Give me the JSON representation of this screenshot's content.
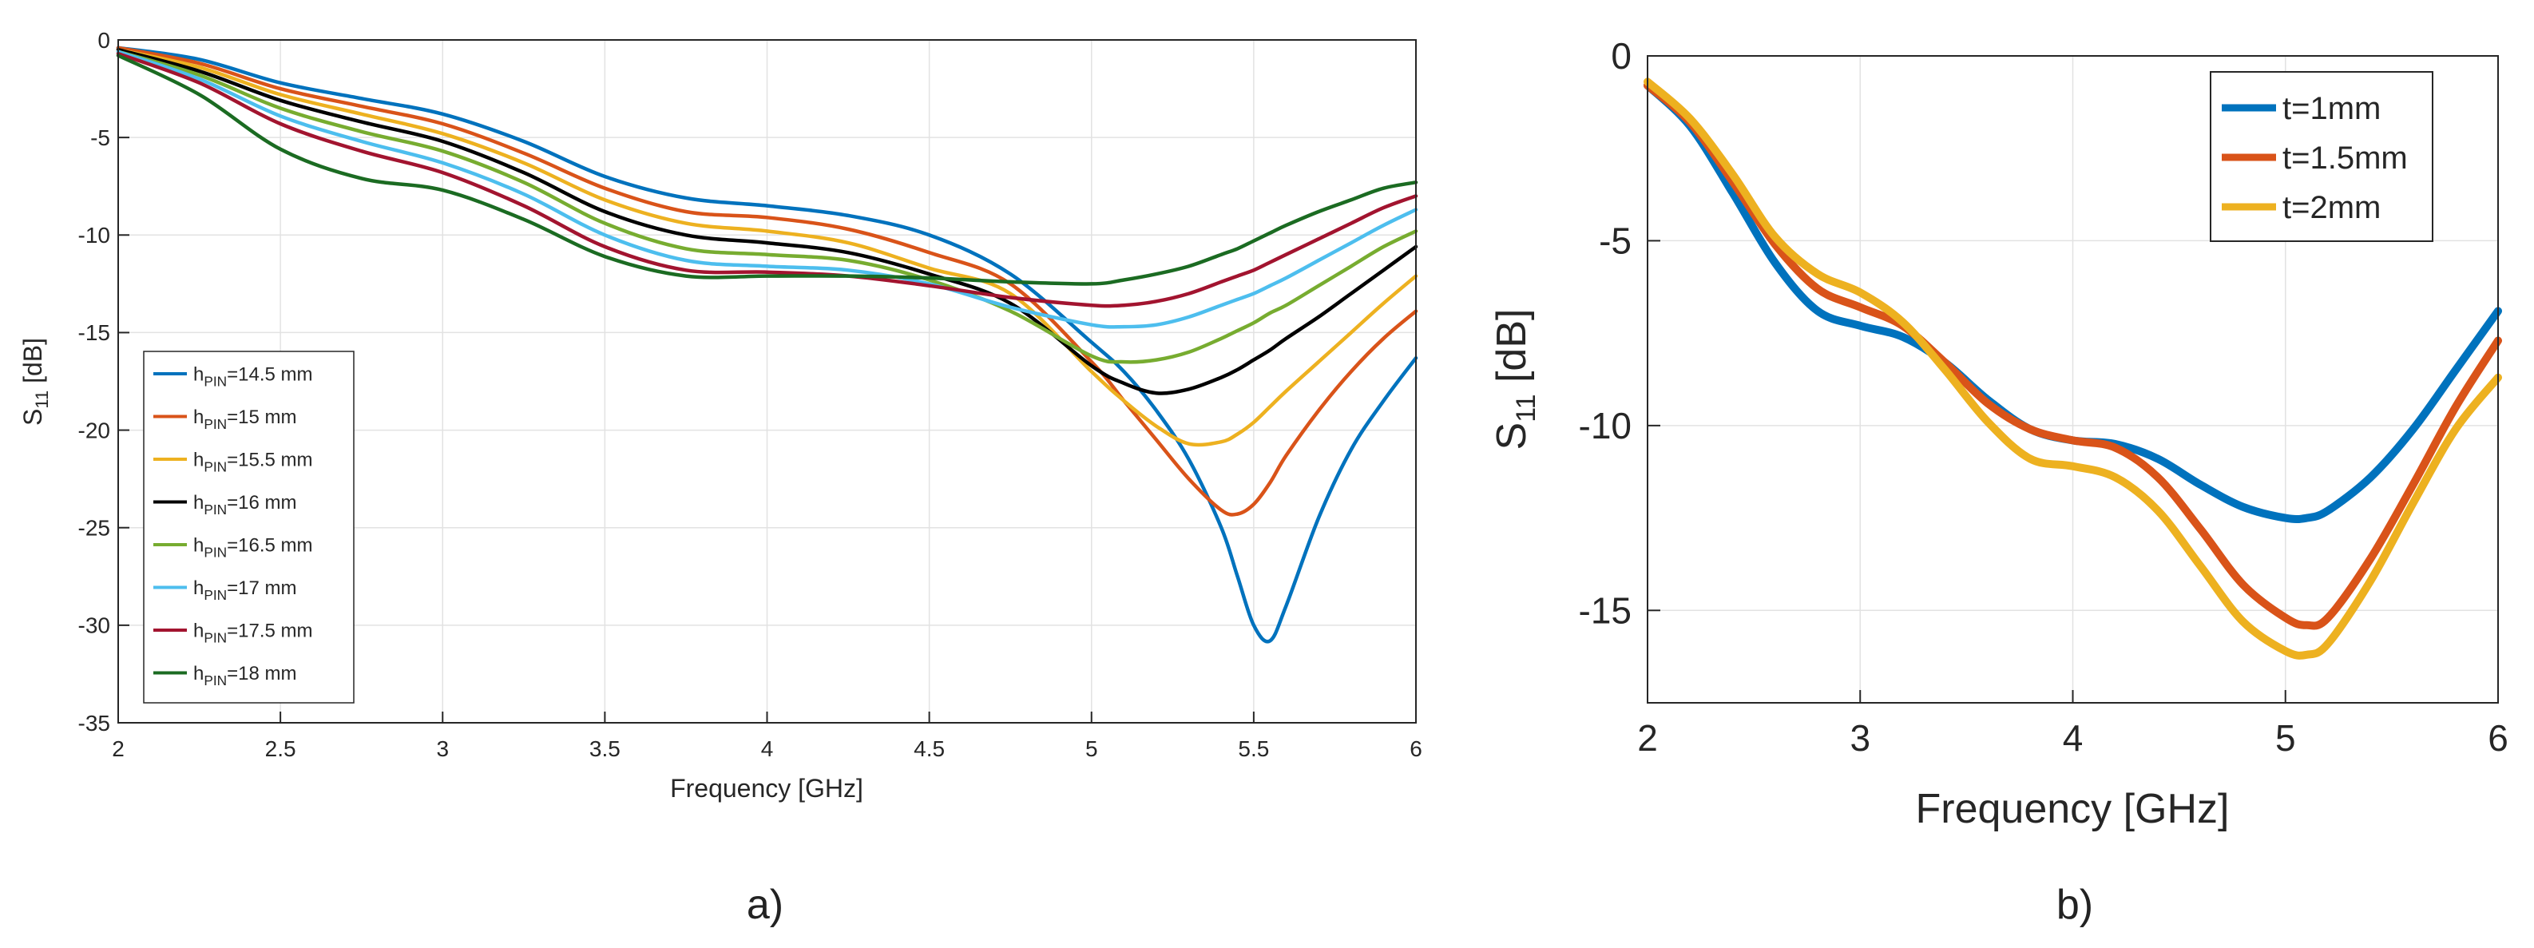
{
  "chart_data": [
    {
      "type": "line",
      "panel_label": "a)",
      "xlabel": "Frequency [GHz]",
      "ylabel_main": "S",
      "ylabel_sub": "11",
      "ylabel_unit": " [dB]",
      "xlim": [
        2,
        6
      ],
      "ylim": [
        -35,
        0
      ],
      "xticks": [
        2,
        2.5,
        3,
        3.5,
        4,
        4.5,
        5,
        5.5,
        6
      ],
      "yticks": [
        0,
        -5,
        -10,
        -15,
        -20,
        -25,
        -30,
        -35
      ],
      "grid": true,
      "legend_position": "bottom-left",
      "x": [
        2,
        2.25,
        2.5,
        2.75,
        3,
        3.25,
        3.5,
        3.75,
        4,
        4.25,
        4.5,
        4.75,
        5,
        5.1,
        5.2,
        5.3,
        5.4,
        5.45,
        5.5,
        5.55,
        5.6,
        5.7,
        5.8,
        5.9,
        6
      ],
      "series": [
        {
          "label_main": "h",
          "label_sub": "PIN",
          "label_rest": "=14.5 mm",
          "color": "#0072BD",
          "values": [
            -0.4,
            -1.0,
            -2.2,
            -3.0,
            -3.8,
            -5.2,
            -7.0,
            -8.1,
            -8.5,
            -9.0,
            -10.0,
            -12.0,
            -15.5,
            -17.0,
            -19.0,
            -21.5,
            -25.0,
            -27.5,
            -30.0,
            -30.8,
            -29.0,
            -24.5,
            -21.0,
            -18.5,
            -16.3
          ]
        },
        {
          "label_main": "h",
          "label_sub": "PIN",
          "label_rest": "=15 mm",
          "color": "#D95319",
          "values": [
            -0.4,
            -1.2,
            -2.5,
            -3.4,
            -4.3,
            -5.8,
            -7.6,
            -8.8,
            -9.1,
            -9.7,
            -10.9,
            -12.5,
            -16.5,
            -18.5,
            -20.5,
            -22.5,
            -24.1,
            -24.3,
            -23.8,
            -22.7,
            -21.3,
            -19.0,
            -17.0,
            -15.3,
            -13.9
          ]
        },
        {
          "label_main": "h",
          "label_sub": "PIN",
          "label_rest": "=15.5 mm",
          "color": "#EDB120",
          "values": [
            -0.5,
            -1.4,
            -2.8,
            -3.8,
            -4.8,
            -6.3,
            -8.2,
            -9.4,
            -9.8,
            -10.4,
            -11.7,
            -13.0,
            -17.0,
            -18.5,
            -19.8,
            -20.7,
            -20.6,
            -20.2,
            -19.6,
            -18.8,
            -18.0,
            -16.5,
            -15.0,
            -13.5,
            -12.1
          ]
        },
        {
          "label_main": "h",
          "label_sub": "PIN",
          "label_rest": "=16 mm",
          "color": "#000000",
          "values": [
            -0.5,
            -1.6,
            -3.1,
            -4.2,
            -5.2,
            -6.8,
            -8.8,
            -10.0,
            -10.4,
            -10.9,
            -12.0,
            -13.5,
            -16.7,
            -17.6,
            -18.1,
            -17.9,
            -17.3,
            -16.9,
            -16.4,
            -15.9,
            -15.3,
            -14.2,
            -13.0,
            -11.8,
            -10.6
          ]
        },
        {
          "label_main": "h",
          "label_sub": "PIN",
          "label_rest": "=16.5 mm",
          "color": "#77AC30",
          "values": [
            -0.6,
            -1.8,
            -3.5,
            -4.7,
            -5.7,
            -7.3,
            -9.4,
            -10.7,
            -11.0,
            -11.3,
            -12.3,
            -13.9,
            -16.2,
            -16.5,
            -16.4,
            -16.0,
            -15.3,
            -14.9,
            -14.5,
            -14.0,
            -13.6,
            -12.6,
            -11.6,
            -10.6,
            -9.8
          ]
        },
        {
          "label_main": "h",
          "label_sub": "PIN",
          "label_rest": "=17 mm",
          "color": "#4DBEEE",
          "values": [
            -0.6,
            -2.0,
            -3.9,
            -5.2,
            -6.3,
            -7.9,
            -10.0,
            -11.3,
            -11.6,
            -11.8,
            -12.5,
            -13.7,
            -14.6,
            -14.7,
            -14.6,
            -14.2,
            -13.6,
            -13.3,
            -13.0,
            -12.6,
            -12.2,
            -11.3,
            -10.4,
            -9.5,
            -8.7
          ]
        },
        {
          "label_main": "h",
          "label_sub": "PIN",
          "label_rest": "=17.5 mm",
          "color": "#A2142F",
          "values": [
            -0.7,
            -2.2,
            -4.3,
            -5.7,
            -6.8,
            -8.5,
            -10.6,
            -11.8,
            -11.9,
            -12.1,
            -12.6,
            -13.2,
            -13.6,
            -13.6,
            -13.4,
            -13.0,
            -12.4,
            -12.1,
            -11.8,
            -11.4,
            -11.0,
            -10.2,
            -9.4,
            -8.6,
            -8.0
          ]
        },
        {
          "label_main": "h",
          "label_sub": "PIN",
          "label_rest": "=18 mm",
          "color": "#1B6B22",
          "values": [
            -0.8,
            -2.8,
            -5.6,
            -7.1,
            -7.7,
            -9.2,
            -11.1,
            -12.1,
            -12.1,
            -12.1,
            -12.2,
            -12.4,
            -12.5,
            -12.3,
            -12.0,
            -11.6,
            -11.0,
            -10.7,
            -10.3,
            -9.9,
            -9.5,
            -8.8,
            -8.2,
            -7.6,
            -7.3
          ]
        }
      ]
    },
    {
      "type": "line",
      "panel_label": "b)",
      "xlabel": "Frequency [GHz]",
      "ylabel_main": "S",
      "ylabel_sub": "11",
      "ylabel_unit": " [dB]",
      "xlim": [
        2,
        6
      ],
      "ylim": [
        -17.5,
        0
      ],
      "xticks": [
        2,
        3,
        4,
        5,
        6
      ],
      "yticks": [
        0,
        -5,
        -10,
        -15
      ],
      "grid": true,
      "legend_position": "top-right",
      "x": [
        2,
        2.2,
        2.4,
        2.6,
        2.8,
        3.0,
        3.2,
        3.4,
        3.6,
        3.8,
        4.0,
        4.2,
        4.4,
        4.6,
        4.8,
        5.0,
        5.1,
        5.2,
        5.4,
        5.6,
        5.8,
        6.0
      ],
      "series": [
        {
          "label": "t=1mm",
          "color": "#0072BD",
          "values": [
            -0.8,
            -1.9,
            -3.7,
            -5.6,
            -6.9,
            -7.3,
            -7.6,
            -8.3,
            -9.3,
            -10.1,
            -10.4,
            -10.5,
            -10.9,
            -11.6,
            -12.2,
            -12.5,
            -12.5,
            -12.3,
            -11.4,
            -10.1,
            -8.5,
            -6.9
          ]
        },
        {
          "label": "t=1.5mm",
          "color": "#D95319",
          "values": [
            -0.8,
            -1.8,
            -3.4,
            -5.1,
            -6.3,
            -6.8,
            -7.3,
            -8.3,
            -9.4,
            -10.1,
            -10.4,
            -10.6,
            -11.4,
            -12.8,
            -14.3,
            -15.2,
            -15.4,
            -15.2,
            -13.6,
            -11.6,
            -9.5,
            -7.7
          ]
        },
        {
          "label": "t=2mm",
          "color": "#EDB120",
          "values": [
            -0.7,
            -1.7,
            -3.2,
            -4.9,
            -5.9,
            -6.4,
            -7.2,
            -8.5,
            -9.9,
            -10.9,
            -11.1,
            -11.4,
            -12.3,
            -13.8,
            -15.3,
            -16.1,
            -16.2,
            -15.9,
            -14.2,
            -12.1,
            -10.1,
            -8.7
          ]
        }
      ]
    }
  ]
}
